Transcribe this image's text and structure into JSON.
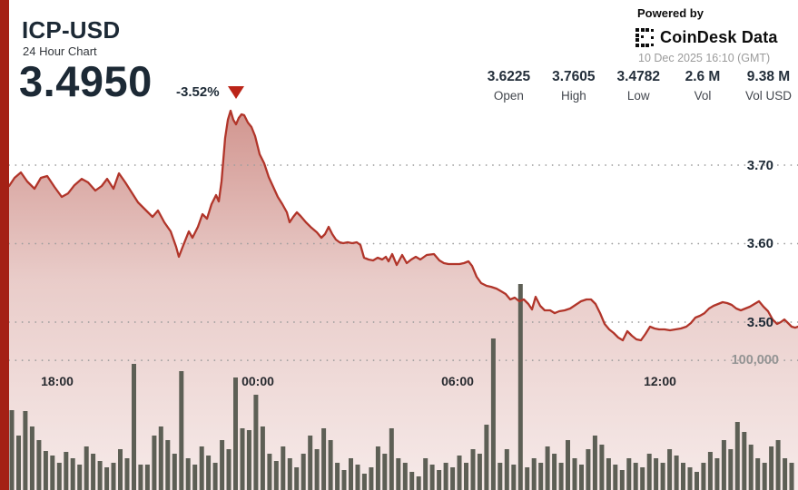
{
  "header": {
    "symbol": "ICP-USD",
    "subtitle": "24 Hour Chart",
    "price": "3.4950",
    "change_pct": "-3.52%",
    "change_direction": "down"
  },
  "branding": {
    "powered_by": "Powered by",
    "brand_name": "CoinDesk Data",
    "timestamp": "10 Dec 2025 16:10 (GMT)"
  },
  "stats": [
    {
      "value": "3.6225",
      "label": "Open"
    },
    {
      "value": "3.7605",
      "label": "High"
    },
    {
      "value": "3.4782",
      "label": "Low"
    },
    {
      "value": "2.6 M",
      "label": "Vol"
    },
    {
      "value": "9.38 M",
      "label": "Vol USD"
    }
  ],
  "colors": {
    "accent_red_edge": "#a42015",
    "line_red": "#b1352a",
    "triangle_red": "#bb2418",
    "navy_text": "#1c2935",
    "volume_bar": "#5d5f55",
    "gridline": "#9d9d9d",
    "muted_text": "#9b9b9b"
  },
  "chart_data": {
    "type": "line",
    "title": "ICP-USD 24 Hour Chart",
    "legend": false,
    "grid": "dotted-horizontal",
    "y_axis_price": {
      "side": "right",
      "range": [
        3.44,
        3.8
      ],
      "ticks": [
        {
          "label": "3.70",
          "value": 3.7
        },
        {
          "label": "3.60",
          "value": 3.6
        },
        {
          "label": "3.50",
          "value": 3.5
        }
      ]
    },
    "y_axis_volume": {
      "side": "right",
      "ticks": [
        {
          "label": "100,000",
          "value": 100000
        }
      ]
    },
    "x_axis": {
      "ticks": [
        "18:00",
        "00:00",
        "06:00",
        "12:00"
      ]
    },
    "price_series": {
      "name": "ICP-USD price",
      "points": [
        [
          10,
          3.6734
        ],
        [
          16,
          3.6838
        ],
        [
          23,
          3.6908
        ],
        [
          30,
          3.6792
        ],
        [
          38,
          3.6699
        ],
        [
          45,
          3.6838
        ],
        [
          52,
          3.6861
        ],
        [
          60,
          3.6722
        ],
        [
          68,
          3.6595
        ],
        [
          75,
          3.6641
        ],
        [
          82,
          3.6745
        ],
        [
          90,
          3.6826
        ],
        [
          97,
          3.678
        ],
        [
          105,
          3.6676
        ],
        [
          112,
          3.6734
        ],
        [
          118,
          3.6826
        ],
        [
          125,
          3.6699
        ],
        [
          131,
          3.6896
        ],
        [
          138,
          3.678
        ],
        [
          145,
          3.6653
        ],
        [
          152,
          3.6526
        ],
        [
          160,
          3.6434
        ],
        [
          168,
          3.6341
        ],
        [
          174,
          3.6422
        ],
        [
          181,
          3.6272
        ],
        [
          188,
          3.6156
        ],
        [
          194,
          3.596
        ],
        [
          197,
          3.5832
        ],
        [
          202,
          3.5982
        ],
        [
          208,
          3.6156
        ],
        [
          212,
          3.6075
        ],
        [
          218,
          3.6214
        ],
        [
          223,
          3.6376
        ],
        [
          228,
          3.6318
        ],
        [
          233,
          3.6503
        ],
        [
          238,
          3.6618
        ],
        [
          241,
          3.6538
        ],
        [
          244,
          3.6792
        ],
        [
          248,
          3.7347
        ],
        [
          251,
          3.7578
        ],
        [
          254,
          3.7694
        ],
        [
          257,
          3.7578
        ],
        [
          260,
          3.752
        ],
        [
          263,
          3.7601
        ],
        [
          266,
          3.7647
        ],
        [
          269,
          3.7636
        ],
        [
          273,
          3.7543
        ],
        [
          277,
          3.7485
        ],
        [
          281,
          3.737
        ],
        [
          286,
          3.7139
        ],
        [
          291,
          3.7023
        ],
        [
          296,
          3.6849
        ],
        [
          301,
          3.6722
        ],
        [
          306,
          3.6595
        ],
        [
          311,
          3.6503
        ],
        [
          316,
          3.6399
        ],
        [
          319,
          3.6272
        ],
        [
          323,
          3.6341
        ],
        [
          327,
          3.6399
        ],
        [
          331,
          3.6353
        ],
        [
          337,
          3.6272
        ],
        [
          343,
          3.6203
        ],
        [
          349,
          3.6145
        ],
        [
          354,
          3.6075
        ],
        [
          358,
          3.6121
        ],
        [
          362,
          3.6214
        ],
        [
          366,
          3.6121
        ],
        [
          370,
          3.6052
        ],
        [
          374,
          3.6017
        ],
        [
          378,
          3.6006
        ],
        [
          383,
          3.6017
        ],
        [
          388,
          3.6006
        ],
        [
          393,
          3.6017
        ],
        [
          397,
          3.5983
        ],
        [
          401,
          3.5821
        ],
        [
          406,
          3.5798
        ],
        [
          411,
          3.5786
        ],
        [
          416,
          3.5821
        ],
        [
          421,
          3.5798
        ],
        [
          425,
          3.5832
        ],
        [
          428,
          3.5774
        ],
        [
          432,
          3.5867
        ],
        [
          437,
          3.5728
        ],
        [
          443,
          3.5855
        ],
        [
          448,
          3.5751
        ],
        [
          453,
          3.5798
        ],
        [
          458,
          3.5832
        ],
        [
          463,
          3.5798
        ],
        [
          470,
          3.5855
        ],
        [
          478,
          3.5867
        ],
        [
          484,
          3.5786
        ],
        [
          489,
          3.5751
        ],
        [
          494,
          3.574
        ],
        [
          500,
          3.574
        ],
        [
          506,
          3.574
        ],
        [
          511,
          3.5751
        ],
        [
          516,
          3.5774
        ],
        [
          520,
          3.5716
        ],
        [
          525,
          3.5578
        ],
        [
          530,
          3.5497
        ],
        [
          536,
          3.5462
        ],
        [
          541,
          3.545
        ],
        [
          547,
          3.5427
        ],
        [
          552,
          3.5393
        ],
        [
          557,
          3.5358
        ],
        [
          562,
          3.5289
        ],
        [
          567,
          3.5312
        ],
        [
          572,
          3.5266
        ],
        [
          577,
          3.5289
        ],
        [
          582,
          3.5231
        ],
        [
          586,
          3.5162
        ],
        [
          590,
          3.5323
        ],
        [
          595,
          3.5208
        ],
        [
          600,
          3.515
        ],
        [
          606,
          3.515
        ],
        [
          611,
          3.5115
        ],
        [
          616,
          3.5139
        ],
        [
          622,
          3.515
        ],
        [
          628,
          3.5173
        ],
        [
          634,
          3.522
        ],
        [
          640,
          3.5266
        ],
        [
          646,
          3.5289
        ],
        [
          651,
          3.5289
        ],
        [
          656,
          3.5231
        ],
        [
          661,
          3.5115
        ],
        [
          666,
          3.4977
        ],
        [
          671,
          3.4908
        ],
        [
          676,
          3.4861
        ],
        [
          681,
          3.4803
        ],
        [
          686,
          3.4769
        ],
        [
          691,
          3.4884
        ],
        [
          696,
          3.4827
        ],
        [
          701,
          3.478
        ],
        [
          706,
          3.4769
        ],
        [
          711,
          3.485
        ],
        [
          716,
          3.4942
        ],
        [
          721,
          3.4919
        ],
        [
          726,
          3.4908
        ],
        [
          732,
          3.4908
        ],
        [
          738,
          3.4896
        ],
        [
          744,
          3.4908
        ],
        [
          750,
          3.4919
        ],
        [
          756,
          3.4942
        ],
        [
          761,
          3.4989
        ],
        [
          766,
          3.5058
        ],
        [
          771,
          3.5081
        ],
        [
          776,
          3.5115
        ],
        [
          781,
          3.5173
        ],
        [
          786,
          3.5208
        ],
        [
          791,
          3.5231
        ],
        [
          796,
          3.5254
        ],
        [
          801,
          3.5243
        ],
        [
          806,
          3.522
        ],
        [
          811,
          3.5173
        ],
        [
          816,
          3.515
        ],
        [
          821,
          3.5173
        ],
        [
          826,
          3.5197
        ],
        [
          831,
          3.5231
        ],
        [
          836,
          3.5266
        ],
        [
          841,
          3.5197
        ],
        [
          846,
          3.5139
        ],
        [
          851,
          3.5034
        ],
        [
          856,
          3.4977
        ],
        [
          860,
          3.5
        ],
        [
          864,
          3.5034
        ],
        [
          868,
          3.4989
        ],
        [
          872,
          3.4942
        ],
        [
          876,
          3.493
        ],
        [
          879,
          3.4942
        ]
      ]
    },
    "volume_series": {
      "name": "Volume",
      "bars": [
        61600,
        42000,
        60900,
        49000,
        38500,
        30100,
        26600,
        21000,
        29400,
        24500,
        19600,
        33600,
        28000,
        22400,
        17500,
        21000,
        31500,
        24500,
        97300,
        19600,
        19600,
        42000,
        49000,
        38500,
        28000,
        91700,
        24500,
        19600,
        33600,
        26600,
        21000,
        38500,
        31500,
        86800,
        47600,
        46200,
        73500,
        49000,
        28000,
        22400,
        33600,
        24500,
        17500,
        28000,
        42000,
        31500,
        47600,
        38500,
        21000,
        15400,
        24500,
        19600,
        12600,
        17500,
        33600,
        28000,
        47600,
        24500,
        21000,
        14000,
        10500,
        24500,
        19600,
        15400,
        21000,
        17500,
        26600,
        21000,
        31500,
        28000,
        50400,
        116900,
        21000,
        31500,
        19600,
        158900,
        17500,
        24500,
        21000,
        33600,
        28000,
        21000,
        38500,
        24500,
        19600,
        31500,
        42000,
        35000,
        24500,
        19600,
        15400,
        24500,
        21000,
        17500,
        28000,
        24500,
        21000,
        31500,
        26600,
        21000,
        17500,
        14000,
        21000,
        29400,
        24500,
        38500,
        31500,
        52500,
        44800,
        35000,
        24500,
        21000,
        33600,
        38500,
        24500,
        21000
      ]
    }
  }
}
